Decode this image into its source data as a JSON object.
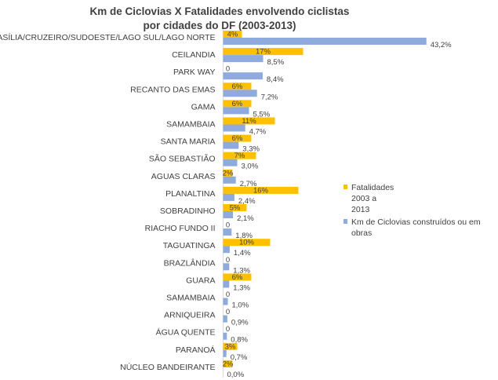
{
  "chart_data": {
    "type": "bar",
    "orientation": "horizontal",
    "title": "Km de Ciclovias X Fatalidades envolvendo ciclistas por cidades do DF (2003-2013)",
    "title_lines": [
      "Km de Ciclovias X Fatalidades envolvendo ciclistas",
      "por cidades do DF (2003-2013)"
    ],
    "categories": [
      "BRASÍLIA/CRUZEIRO/SUDOESTE/LAGO SUL/LAGO NORTE",
      "CEILANDIA",
      "PARK WAY",
      "RECANTO DAS EMAS",
      "GAMA",
      "SAMAMBAIA",
      "SANTA MARIA",
      "SÃO SEBASTIÃO",
      "AGUAS CLARAS",
      "PLANALTINA",
      "SOBRADINHO",
      "RIACHO FUNDO II",
      "TAGUATINGA",
      "BRAZLÂNDIA",
      "GUARA",
      "SAMAMBAIA",
      "ARNIQUEIRA",
      "ÁGUA QUENTE",
      "PARANOÁ",
      "NÚCLEO BANDEIRANTE"
    ],
    "series": [
      {
        "name": "Fatalidades 2003 a 2013",
        "color": "#FFC000",
        "values": [
          4,
          17,
          0,
          6,
          6,
          11,
          6,
          7,
          2,
          16,
          5,
          0,
          10,
          0,
          6,
          0,
          0,
          0,
          3,
          2
        ],
        "labels": [
          "4%",
          "17%",
          "0",
          "6%",
          "6%",
          "11%",
          "6%",
          "7%",
          "2%",
          "16%",
          "5%",
          "0",
          "10%",
          "0",
          "6%",
          "0",
          "0",
          "0",
          "3%",
          "2%"
        ]
      },
      {
        "name": "Km de Ciclovias construídos ou em obras",
        "color": "#8FAADC",
        "values": [
          43.2,
          8.5,
          8.4,
          7.2,
          5.5,
          4.7,
          3.3,
          3.0,
          2.7,
          2.4,
          2.1,
          1.8,
          1.4,
          1.3,
          1.3,
          1.0,
          0.9,
          0.8,
          0.7,
          0.0
        ],
        "labels": [
          "43,2%",
          "8,5%",
          "8,4%",
          "7,2%",
          "5,5%",
          "4,7%",
          "3,3%",
          "3,0%",
          "2,7%",
          "2,4%",
          "2,1%",
          "1,8%",
          "1,4%",
          "1,3%",
          "1,3%",
          "1,0%",
          "0,9%",
          "0,8%",
          "0,7%",
          "0,0%"
        ]
      }
    ],
    "legend_position": "right",
    "grid": false
  }
}
